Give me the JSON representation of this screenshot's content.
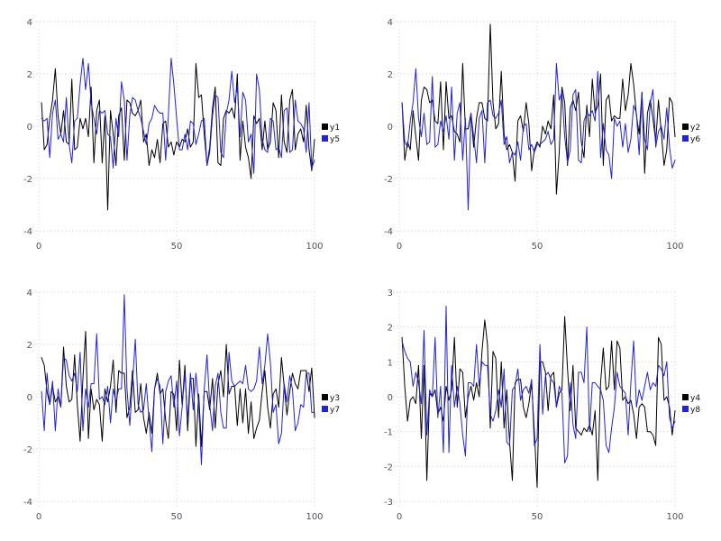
{
  "window": {
    "background": "#ffffff"
  },
  "palette": {
    "black_series": "#000000",
    "blue_series": "#2222dd",
    "grid": "#d8d8e2",
    "tick_label": "#53535d",
    "legend_text": "#111111"
  },
  "chart_data": [
    {
      "type": "line",
      "position": "top-left",
      "title": "",
      "xlabel": "",
      "ylabel": "",
      "xlim": [
        0,
        100
      ],
      "ylim": [
        -4,
        4
      ],
      "xticks": [
        0,
        50,
        100
      ],
      "yticks": [
        4,
        2,
        0,
        -2,
        -4
      ],
      "grid": true,
      "legend_position": "right-center",
      "x": {
        "start": 1,
        "end": 100,
        "step": 1
      },
      "series": [
        {
          "name": "y1",
          "color": "black",
          "values": [
            0.9,
            -0.9,
            -0.7,
            0.3,
            1.0,
            2.2,
            0.4,
            -0.3,
            0.6,
            -0.6,
            -0.7,
            1.8,
            -0.9,
            -0.8,
            0.3,
            -0.1,
            0.3,
            -0.4,
            1.5,
            -1.4,
            0.6,
            1.0,
            -1.4,
            0.4,
            -3.2,
            0.6,
            -0.3,
            -1.5,
            0.4,
            0.7,
            -1.3,
            1.0,
            0.9,
            0.5,
            0.4,
            0.6,
            1.0,
            -0.6,
            -0.3,
            -1.5,
            -0.9,
            -1.2,
            -0.5,
            -1.4,
            0.1,
            0.2,
            -0.8,
            -0.6,
            -1.1,
            -0.6,
            -0.8,
            -0.5,
            -0.6,
            -0.1,
            -0.8,
            -0.6,
            2.4,
            1.1,
            1.2,
            -0.3,
            -1.5,
            -0.8,
            0.7,
            1.5,
            -1.4,
            -1.5,
            0.3,
            0.6,
            0.5,
            0.7,
            0.3,
            2.0,
            -1.3,
            0.2,
            -0.8,
            -1.2,
            -2.0,
            0.4,
            0.1,
            0.3,
            -0.9,
            0.2,
            -0.9,
            -0.6,
            0.9,
            0.6,
            -1.2,
            1.2,
            -0.6,
            -1.0,
            1.0,
            1.4,
            -0.9,
            -0.3,
            -0.1,
            -0.6,
            0.8,
            -0.9,
            -1.7,
            -0.5
          ]
        },
        {
          "name": "y5",
          "color": "blue",
          "values": [
            0.3,
            0.2,
            0.3,
            -1.2,
            0.5,
            1.0,
            -0.5,
            -0.3,
            -0.6,
            1.1,
            -0.7,
            -1.4,
            0.2,
            0.3,
            1.6,
            2.6,
            1.4,
            2.4,
            0.9,
            0.3,
            -0.3,
            0.6,
            0.5,
            0.6,
            -0.3,
            -0.4,
            -1.6,
            0.3,
            -0.4,
            1.7,
            1.0,
            -1.3,
            0.4,
            1.1,
            1.0,
            0.6,
            0.3,
            -0.2,
            -0.7,
            0.1,
            0.3,
            0.8,
            0.6,
            0.5,
            0.5,
            -1.3,
            0.4,
            2.6,
            1.6,
            0.3,
            -0.9,
            -0.9,
            -0.3,
            -0.9,
            0.2,
            0.1,
            -0.7,
            -0.3,
            0.2,
            0.3,
            -1.5,
            -1.0,
            0.4,
            1.2,
            1.1,
            -1.0,
            -1.2,
            0.5,
            1.0,
            2.1,
            0.9,
            1.5,
            -0.4,
            1.3,
            1.0,
            -0.6,
            -0.3,
            -1.8,
            2.0,
            1.4,
            -0.5,
            -0.9,
            -1.0,
            0.3,
            0.2,
            -0.9,
            -0.8,
            -1.2,
            0.6,
            0.7,
            -1.0,
            -0.9,
            1.0,
            0.2,
            0.1,
            -0.1,
            -1.0,
            0.9,
            -1.6,
            -1.3
          ]
        }
      ]
    },
    {
      "type": "line",
      "position": "top-right",
      "title": "",
      "xlabel": "",
      "ylabel": "",
      "xlim": [
        0,
        100
      ],
      "ylim": [
        -4,
        4
      ],
      "xticks": [
        0,
        50,
        100
      ],
      "yticks": [
        4,
        2,
        0,
        -2,
        -4
      ],
      "grid": true,
      "legend_position": "right-center",
      "x": {
        "start": 1,
        "end": 100,
        "step": 1
      },
      "series": [
        {
          "name": "y2",
          "color": "black",
          "values": [
            0.9,
            -1.3,
            -0.6,
            -0.9,
            0.6,
            -0.4,
            -1.3,
            1.0,
            1.5,
            1.4,
            0.9,
            1.0,
            0.2,
            0.1,
            1.7,
            -0.9,
            1.7,
            0.3,
            0.4,
            -0.2,
            -0.3,
            -0.6,
            2.4,
            -0.1,
            -0.1,
            0.5,
            -0.8,
            0.3,
            0.9,
            0.9,
            0.3,
            0.2,
            3.9,
            0.9,
            -0.1,
            0.1,
            2.1,
            -0.3,
            -0.9,
            -0.7,
            -1.0,
            -2.1,
            0.2,
            0.4,
            -0.2,
            0.9,
            0.1,
            -1.7,
            -0.9,
            -0.6,
            -0.8,
            0.0,
            -0.3,
            0.2,
            -0.1,
            1.2,
            -2.6,
            -1.0,
            1.5,
            0.9,
            -1.5,
            0.7,
            1.0,
            0.6,
            1.3,
            -0.6,
            -1.2,
            0.8,
            -0.4,
            1.8,
            0.5,
            0.8,
            2.0,
            -1.5,
            1.0,
            1.2,
            0.2,
            0.4,
            0.3,
            0.3,
            1.8,
            0.6,
            1.2,
            2.4,
            1.6,
            0.4,
            -0.3,
            1.3,
            -1.8,
            0.5,
            1.0,
            0.3,
            -0.6,
            1.0,
            -0.2,
            -1.5,
            -0.9,
            1.1,
            0.9,
            -0.4
          ]
        },
        {
          "name": "y6",
          "color": "blue",
          "values": [
            0.9,
            -0.6,
            -0.8,
            0.2,
            0.9,
            2.2,
            0.3,
            -0.4,
            0.5,
            -0.7,
            -0.6,
            1.9,
            -0.8,
            -0.7,
            0.2,
            -0.2,
            0.4,
            -0.5,
            1.5,
            -1.3,
            0.5,
            0.9,
            -1.3,
            0.3,
            -3.2,
            0.5,
            -0.4,
            -1.4,
            0.3,
            0.6,
            -1.4,
            0.9,
            1.0,
            0.4,
            0.3,
            0.5,
            1.0,
            -0.7,
            -0.4,
            -1.4,
            -1.0,
            -1.1,
            -0.6,
            -1.3,
            0.0,
            0.1,
            -0.9,
            -0.7,
            -1.0,
            -0.7,
            -0.7,
            -0.6,
            -0.5,
            -0.2,
            -0.7,
            -0.5,
            2.4,
            1.0,
            1.3,
            -0.4,
            -1.4,
            -0.9,
            1.2,
            1.4,
            -1.3,
            -1.4,
            0.2,
            0.5,
            0.4,
            0.6,
            0.2,
            2.1,
            -1.2,
            0.1,
            -0.9,
            -1.1,
            -2.0,
            0.3,
            0.0,
            0.2,
            -0.8,
            0.1,
            -1.0,
            -0.5,
            0.8,
            0.5,
            -1.1,
            1.2,
            -0.5,
            -0.9,
            0.9,
            1.4,
            -0.8,
            -0.2,
            0.0,
            -0.5,
            0.7,
            -0.8,
            -1.6,
            -1.3
          ]
        }
      ]
    },
    {
      "type": "line",
      "position": "bottom-left",
      "title": "",
      "xlabel": "",
      "ylabel": "",
      "xlim": [
        0,
        100
      ],
      "ylim": [
        -4,
        4
      ],
      "xticks": [
        0,
        50,
        100
      ],
      "yticks": [
        4,
        2,
        0,
        -2,
        -4
      ],
      "grid": true,
      "legend_position": "right-center",
      "x": {
        "start": 1,
        "end": 100,
        "step": 1
      },
      "series": [
        {
          "name": "y3",
          "color": "black",
          "values": [
            1.5,
            1.2,
            0.2,
            -0.3,
            0.4,
            -0.2,
            0.0,
            -0.4,
            1.9,
            0.4,
            -0.2,
            -0.1,
            1.6,
            -0.3,
            -1.7,
            0.7,
            2.5,
            -1.6,
            0.3,
            -0.5,
            -0.1,
            -0.3,
            -1.7,
            0.3,
            -0.2,
            0.4,
            1.4,
            -0.6,
            1.0,
            0.9,
            0.9,
            -0.8,
            -0.4,
            1.0,
            -0.6,
            -0.5,
            0.5,
            -0.8,
            -1.4,
            -0.6,
            -1.4,
            0.3,
            0.9,
            0.1,
            0.3,
            -0.9,
            -1.6,
            0.2,
            0.1,
            -1.3,
            1.4,
            -0.3,
            1.2,
            -1.3,
            0.7,
            0.7,
            -1.9,
            0.1,
            -1.9,
            0.2,
            0.2,
            -0.5,
            0.7,
            -1.2,
            0.5,
            1.0,
            0.0,
            2.0,
            0.1,
            0.4,
            0.4,
            -1.1,
            0.3,
            -1.0,
            0.3,
            -1.4,
            -0.2,
            -1.6,
            -1.2,
            -0.9,
            0.2,
            1.0,
            -0.4,
            -1.2,
            0.1,
            0.3,
            -0.4,
            1.5,
            0.4,
            -0.7,
            0.2,
            0.9,
            0.5,
            0.3,
            1.0,
            1.0,
            1.0,
            0.2,
            1.1,
            -0.8
          ]
        },
        {
          "name": "y7",
          "color": "blue",
          "values": [
            0.2,
            -1.3,
            0.9,
            -0.3,
            0.6,
            -1.3,
            0.3,
            -0.4,
            1.5,
            1.4,
            0.8,
            0.6,
            0.9,
            0.2,
            1.7,
            -1.3,
            0.3,
            -0.4,
            0.5,
            0.5,
            2.4,
            -0.1,
            0.0,
            -0.3,
            0.4,
            -1.0,
            0.3,
            -0.2,
            0.3,
            0.3,
            3.9,
            0.3,
            -1.1,
            0.5,
            2.2,
            -0.3,
            -0.6,
            -0.5,
            0.5,
            -0.9,
            -2.1,
            0.3,
            0.7,
            0.4,
            -1.8,
            0.2,
            0.6,
            0.8,
            -0.4,
            0.6,
            -1.5,
            -0.4,
            0.9,
            -0.9,
            0.9,
            -0.5,
            0.9,
            -0.3,
            -2.6,
            0.3,
            1.6,
            -0.3,
            -1.3,
            0.4,
            0.9,
            -0.6,
            -1.2,
            -1.2,
            1.7,
            0.6,
            0.4,
            0.5,
            0.6,
            0.5,
            1.2,
            0.3,
            0.2,
            0.3,
            0.6,
            1.9,
            0.5,
            1.2,
            2.4,
            1.3,
            -0.6,
            -0.3,
            -1.8,
            -1.4,
            0.5,
            -0.2,
            0.8,
            0.3,
            -1.3,
            -1.0,
            -0.3,
            -0.4,
            0.9,
            0.9,
            -0.6,
            -0.6
          ]
        }
      ]
    },
    {
      "type": "line",
      "position": "bottom-right",
      "title": "",
      "xlabel": "",
      "ylabel": "",
      "xlim": [
        0,
        100
      ],
      "ylim": [
        -3,
        3
      ],
      "xticks": [
        0,
        50,
        100
      ],
      "yticks": [
        3,
        2,
        1,
        0,
        -1,
        -2,
        -3
      ],
      "grid": true,
      "legend_position": "right-center",
      "x": {
        "start": 1,
        "end": 100,
        "step": 1
      },
      "series": [
        {
          "name": "y4",
          "color": "black",
          "values": [
            1.7,
            0.3,
            -0.7,
            -0.1,
            0.0,
            -0.2,
            0.9,
            -1.2,
            0.9,
            -2.4,
            0.1,
            0.0,
            0.2,
            -0.5,
            -0.3,
            -0.7,
            0.3,
            -0.1,
            0.2,
            1.7,
            -0.3,
            0.8,
            0.7,
            -0.6,
            0.0,
            0.3,
            -0.1,
            0.4,
            0.0,
            1.3,
            2.2,
            1.5,
            -0.9,
            1.3,
            1.1,
            -0.6,
            1.0,
            -0.9,
            0.2,
            -1.3,
            -2.4,
            0.4,
            0.5,
            0.5,
            -0.3,
            -0.6,
            -0.2,
            0.4,
            -1.0,
            -2.6,
            1.0,
            1.0,
            0.7,
            -0.4,
            0.6,
            0.7,
            -0.3,
            0.1,
            0.2,
            2.3,
            0.8,
            -0.4,
            0.9,
            -0.9,
            -1.0,
            -1.1,
            -0.9,
            -1.0,
            -0.8,
            -1.1,
            -0.4,
            -2.4,
            0.4,
            1.4,
            0.2,
            0.3,
            1.6,
            0.2,
            1.6,
            1.4,
            -0.1,
            0.0,
            -0.2,
            -0.1,
            -0.5,
            -1.2,
            -0.3,
            -0.2,
            -0.3,
            -1.0,
            -1.0,
            -1.1,
            -1.4,
            1.7,
            1.5,
            -0.1,
            0.0,
            -0.3,
            -1.1,
            -0.4
          ]
        },
        {
          "name": "y8",
          "color": "blue",
          "values": [
            1.6,
            1.3,
            1.1,
            1.0,
            0.3,
            0.7,
            0.4,
            -0.2,
            1.9,
            -1.1,
            0.2,
            0.0,
            1.7,
            -0.6,
            0.3,
            -1.6,
            2.6,
            -1.6,
            0.9,
            -0.3,
            0.3,
            -0.2,
            -1.1,
            -1.7,
            0.4,
            0.4,
            0.3,
            1.5,
            0.3,
            1.0,
            0.9,
            0.9,
            -0.5,
            -0.7,
            -0.4,
            0.2,
            -0.3,
            0.8,
            -1.3,
            -1.4,
            0.2,
            0.3,
            0.8,
            -0.1,
            0.2,
            0.3,
            0.1,
            0.5,
            -1.4,
            -1.2,
            1.5,
            -0.5,
            0.6,
            0.7,
            0.5,
            0.4,
            -0.3,
            0.3,
            0.1,
            -1.9,
            -1.7,
            0.4,
            -0.8,
            -1.2,
            0.7,
            0.7,
            0.4,
            2.0,
            -1.0,
            0.4,
            0.4,
            0.3,
            0.2,
            -0.1,
            -1.4,
            -1.6,
            -0.9,
            -0.3,
            0.7,
            0.3,
            0.2,
            0.1,
            -1.1,
            0.4,
            1.6,
            -0.3,
            0.2,
            -0.1,
            0.3,
            0.7,
            0.2,
            0.4,
            0.3,
            0.9,
            0.8,
            0.6,
            1.0,
            -0.6,
            -0.9,
            -0.7
          ]
        }
      ]
    }
  ]
}
